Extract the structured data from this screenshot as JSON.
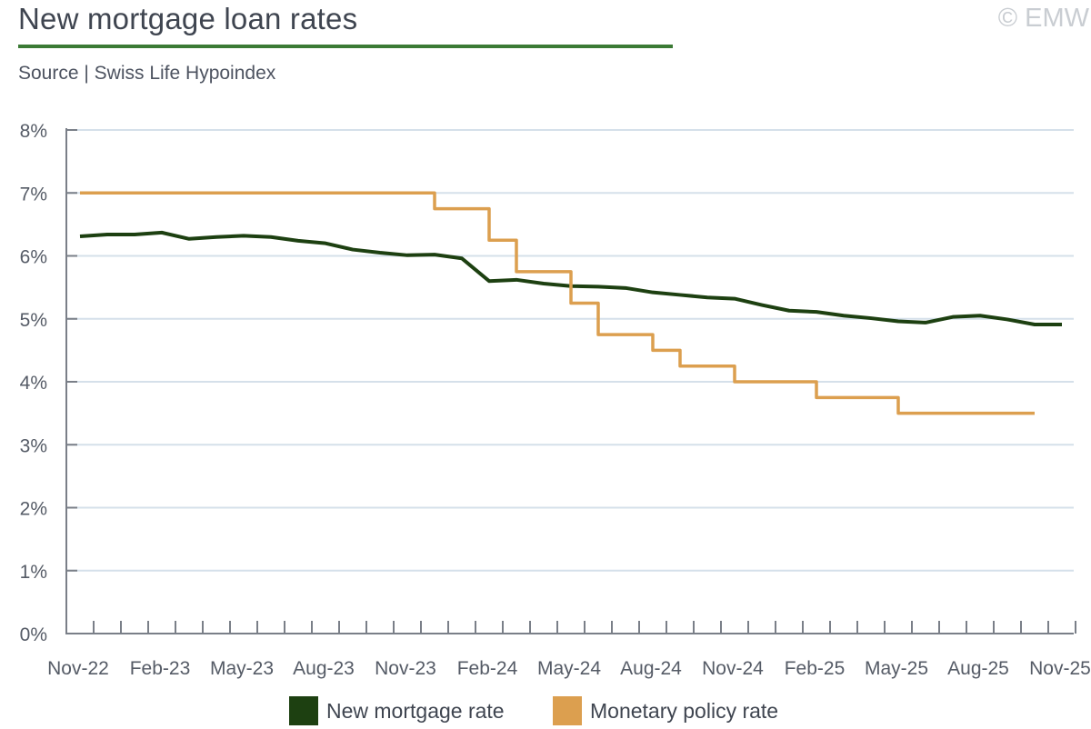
{
  "header": {
    "title": "New mortgage loan rates",
    "copyright": "© EMW",
    "source": "Source | Swiss Life Hypoindex"
  },
  "colors": {
    "title_rule": "#3b7a35",
    "mortgage": "#1d4011",
    "policy": "#dc9f4f",
    "grid": "#d5e0ea",
    "axis": "#7a7f88",
    "tick_text": "#555b66"
  },
  "chart_data": {
    "type": "line",
    "title": "New mortgage loan rates",
    "xlabel": "",
    "ylabel": "",
    "ylim": [
      0,
      8
    ],
    "grid": true,
    "legend_position": "bottom",
    "y_ticks": [
      "0%",
      "1%",
      "2%",
      "3%",
      "4%",
      "5%",
      "6%",
      "7%",
      "8%"
    ],
    "x_ticks": [
      "Nov-22",
      "Feb-23",
      "May-23",
      "Aug-23",
      "Nov-23",
      "Feb-24",
      "May-24",
      "Aug-24",
      "Nov-24",
      "Feb-25",
      "May-25",
      "Aug-25",
      "Nov-25"
    ],
    "x": [
      "Nov-22",
      "Dec-22",
      "Jan-23",
      "Feb-23",
      "Mar-23",
      "Apr-23",
      "May-23",
      "Jun-23",
      "Jul-23",
      "Aug-23",
      "Sep-23",
      "Oct-23",
      "Nov-23",
      "Dec-23",
      "Jan-24",
      "Feb-24",
      "Mar-24",
      "Apr-24",
      "May-24",
      "Jun-24",
      "Jul-24",
      "Aug-24",
      "Sep-24",
      "Oct-24",
      "Nov-24",
      "Dec-24",
      "Jan-25",
      "Feb-25",
      "Mar-25",
      "Apr-25",
      "May-25",
      "Jun-25",
      "Jul-25",
      "Aug-25",
      "Sep-25",
      "Oct-25",
      "Nov-25"
    ],
    "series": [
      {
        "name": "New mortgage rate",
        "step": false,
        "values": [
          6.31,
          6.34,
          6.34,
          6.37,
          6.27,
          6.3,
          6.32,
          6.3,
          6.24,
          6.2,
          6.1,
          6.05,
          6.01,
          6.02,
          5.96,
          5.6,
          5.62,
          5.56,
          5.52,
          5.51,
          5.49,
          5.42,
          5.38,
          5.34,
          5.32,
          5.22,
          5.13,
          5.11,
          5.05,
          5.01,
          4.96,
          4.94,
          5.03,
          5.05,
          4.99,
          4.91,
          4.91
        ]
      },
      {
        "name": "Monetary policy rate",
        "step": true,
        "values": [
          7.0,
          7.0,
          7.0,
          7.0,
          7.0,
          7.0,
          7.0,
          7.0,
          7.0,
          7.0,
          7.0,
          7.0,
          7.0,
          6.75,
          6.75,
          6.25,
          5.75,
          5.75,
          5.25,
          4.75,
          4.75,
          4.5,
          4.25,
          4.25,
          4.0,
          4.0,
          4.0,
          3.75,
          3.75,
          3.75,
          3.5,
          3.5,
          3.5,
          3.5,
          3.5,
          3.5,
          null
        ]
      }
    ]
  }
}
